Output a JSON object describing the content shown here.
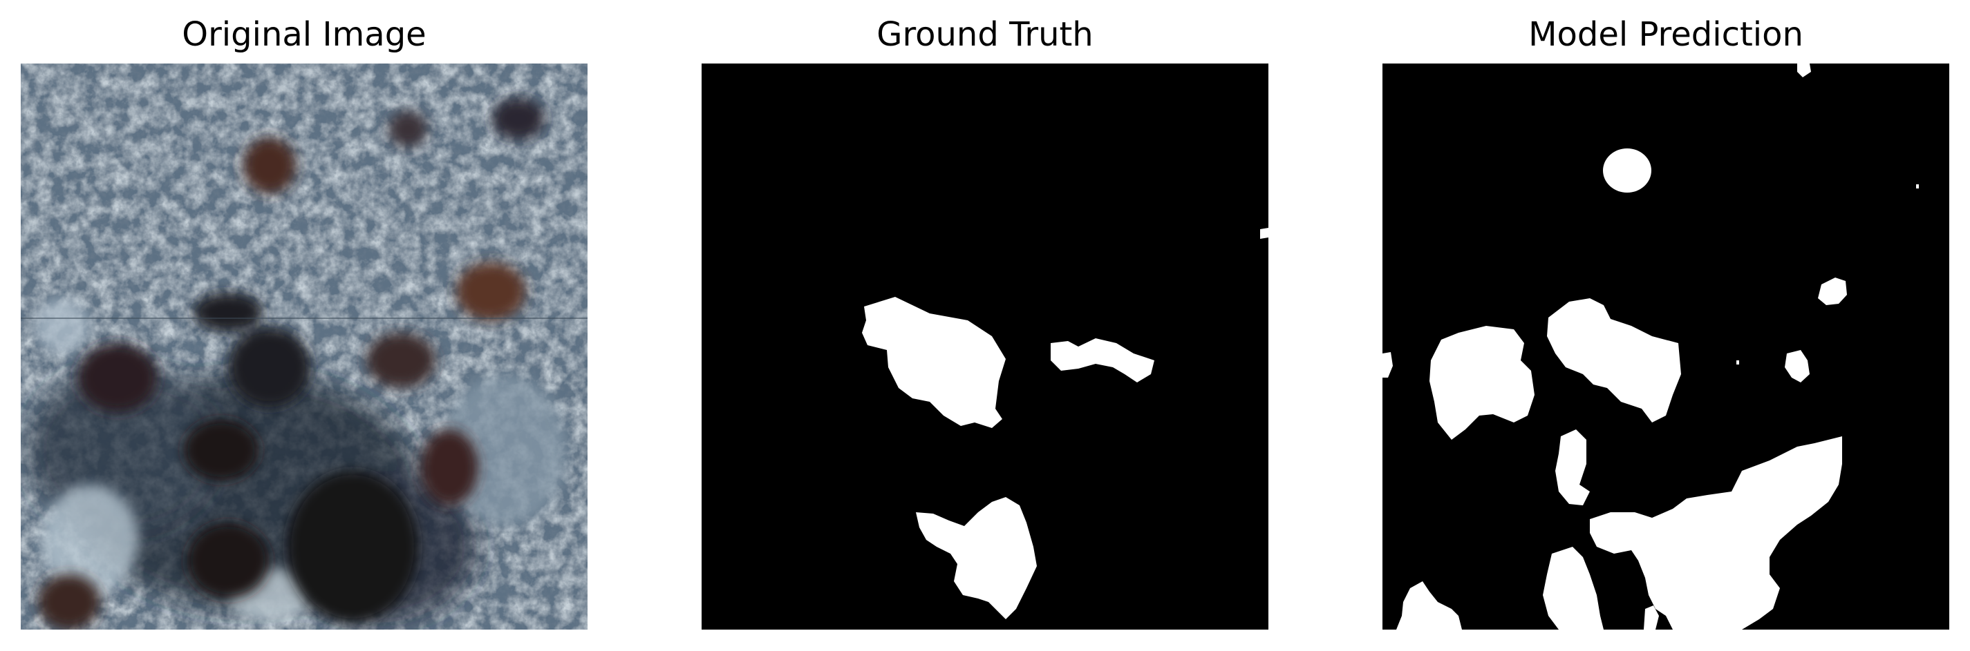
{
  "figure": {
    "panels": [
      {
        "id": "original",
        "title": "Original Image",
        "kind": "microscopy-photo"
      },
      {
        "id": "truth",
        "title": "Ground Truth",
        "kind": "binary-mask"
      },
      {
        "id": "prediction",
        "title": "Model Prediction",
        "kind": "binary-mask"
      }
    ]
  },
  "colors": {
    "mask_background": "#000000",
    "mask_foreground": "#ffffff",
    "tissue_base": "#5d7184",
    "tissue_light": "#a8b8c4",
    "tissue_dark": "#2a3542",
    "nucleus_brown": "#4a2a22",
    "nucleus_dark": "#1b1518"
  }
}
